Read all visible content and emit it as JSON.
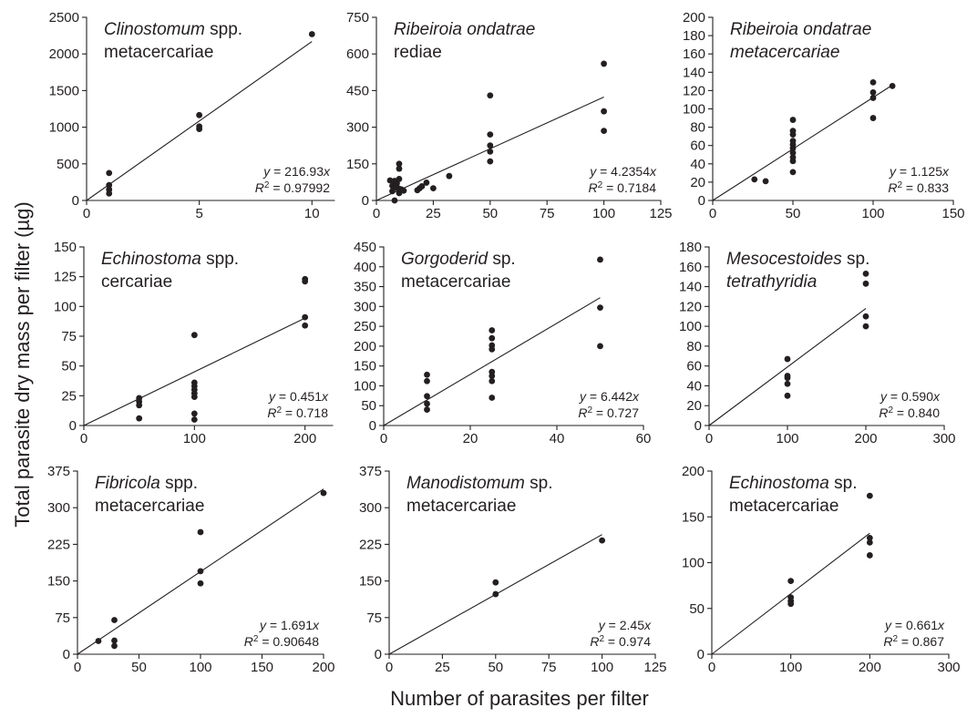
{
  "figure": {
    "xlabel": "Number of parasites per filter",
    "ylabel": "Total parasite dry mass per filter (µg)"
  },
  "chart_data": [
    {
      "type": "scatter",
      "title": [
        {
          "text": "Clinostomum",
          "italic": true
        },
        {
          "text": " spp.",
          "italic": false
        }
      ],
      "subtitle": [
        {
          "text": "metacercariae",
          "italic": false
        }
      ],
      "equation": "y = 216.93x",
      "r2": "0.97992",
      "xlim": [
        0,
        11
      ],
      "ylim": [
        0,
        2500
      ],
      "xticks": [
        0,
        5,
        10
      ],
      "yticks": [
        0,
        500,
        1000,
        1500,
        2000,
        2500
      ],
      "slope": 216.93,
      "fit_x": [
        0,
        10
      ],
      "points": [
        [
          1,
          375
        ],
        [
          1,
          210
        ],
        [
          1,
          150
        ],
        [
          1,
          95
        ],
        [
          5,
          1165
        ],
        [
          5,
          1010
        ],
        [
          5,
          975
        ],
        [
          10,
          2270
        ]
      ]
    },
    {
      "type": "scatter",
      "title": [
        {
          "text": "Ribeiroia ondatrae",
          "italic": true
        }
      ],
      "subtitle": [
        {
          "text": "rediae",
          "italic": false
        }
      ],
      "equation": "y = 4.2354x",
      "r2": "0.7184",
      "xlim": [
        0,
        125
      ],
      "ylim": [
        0,
        750
      ],
      "xticks": [
        0,
        25,
        50,
        75,
        100,
        125
      ],
      "yticks": [
        0,
        150,
        300,
        450,
        600,
        750
      ],
      "slope": 4.2354,
      "fit_x": [
        0,
        100
      ],
      "points": [
        [
          6,
          82
        ],
        [
          7,
          60
        ],
        [
          7,
          38
        ],
        [
          8,
          0
        ],
        [
          8,
          80
        ],
        [
          9,
          70
        ],
        [
          9,
          52
        ],
        [
          10,
          150
        ],
        [
          10,
          130
        ],
        [
          10,
          88
        ],
        [
          10,
          48
        ],
        [
          10,
          30
        ],
        [
          11,
          45
        ],
        [
          12,
          40
        ],
        [
          18,
          42
        ],
        [
          19,
          50
        ],
        [
          20,
          58
        ],
        [
          22,
          73
        ],
        [
          25,
          50
        ],
        [
          32,
          100
        ],
        [
          50,
          430
        ],
        [
          50,
          270
        ],
        [
          50,
          225
        ],
        [
          50,
          200
        ],
        [
          50,
          160
        ],
        [
          100,
          560
        ],
        [
          100,
          365
        ],
        [
          100,
          285
        ]
      ]
    },
    {
      "type": "scatter",
      "title": [
        {
          "text": "Ribeiroia ondatrae",
          "italic": true
        }
      ],
      "subtitle": [
        {
          "text": "metacercariae",
          "italic": true
        }
      ],
      "equation": "y = 1.125x",
      "r2": "0.833",
      "xlim": [
        0,
        150
      ],
      "ylim": [
        0,
        200
      ],
      "xticks": [
        0,
        50,
        100,
        150
      ],
      "yticks": [
        0,
        20,
        40,
        60,
        80,
        100,
        120,
        140,
        160,
        180,
        200
      ],
      "slope": 1.125,
      "fit_x": [
        0,
        112
      ],
      "points": [
        [
          26,
          23
        ],
        [
          33,
          21
        ],
        [
          50,
          88
        ],
        [
          50,
          76
        ],
        [
          50,
          72
        ],
        [
          50,
          65
        ],
        [
          50,
          61
        ],
        [
          50,
          57
        ],
        [
          50,
          52
        ],
        [
          50,
          47
        ],
        [
          50,
          43
        ],
        [
          50,
          31
        ],
        [
          100,
          129
        ],
        [
          100,
          118
        ],
        [
          100,
          112
        ],
        [
          100,
          90
        ],
        [
          112,
          125
        ]
      ]
    },
    {
      "type": "scatter",
      "title": [
        {
          "text": "Echinostoma",
          "italic": true
        },
        {
          "text": " spp.",
          "italic": false
        }
      ],
      "subtitle": [
        {
          "text": "cercariae",
          "italic": false
        }
      ],
      "equation": "y = 0.451x",
      "r2": "0.718",
      "xlim": [
        0,
        225
      ],
      "ylim": [
        0,
        150
      ],
      "xticks": [
        0,
        100,
        200
      ],
      "yticks": [
        0,
        25,
        50,
        75,
        100,
        125,
        150
      ],
      "slope": 0.451,
      "fit_x": [
        0,
        200
      ],
      "points": [
        [
          50,
          23
        ],
        [
          50,
          20
        ],
        [
          50,
          17
        ],
        [
          50,
          6
        ],
        [
          100,
          76
        ],
        [
          100,
          36
        ],
        [
          100,
          33
        ],
        [
          100,
          30
        ],
        [
          100,
          27
        ],
        [
          100,
          24
        ],
        [
          100,
          10
        ],
        [
          100,
          5
        ],
        [
          200,
          123
        ],
        [
          200,
          121
        ],
        [
          200,
          91
        ],
        [
          200,
          84
        ]
      ]
    },
    {
      "type": "scatter",
      "title": [
        {
          "text": "Gorgoderid",
          "italic": true
        },
        {
          "text": " sp.",
          "italic": false
        }
      ],
      "subtitle": [
        {
          "text": "metacercariae",
          "italic": false
        }
      ],
      "equation": "y = 6.442x",
      "r2": "0.727",
      "xlim": [
        0,
        60
      ],
      "ylim": [
        0,
        450
      ],
      "xticks": [
        0,
        20,
        40,
        60
      ],
      "yticks": [
        0,
        50,
        100,
        150,
        200,
        250,
        300,
        350,
        400,
        450
      ],
      "slope": 6.442,
      "fit_x": [
        0,
        50
      ],
      "points": [
        [
          10,
          128
        ],
        [
          10,
          112
        ],
        [
          10,
          74
        ],
        [
          10,
          55
        ],
        [
          10,
          40
        ],
        [
          25,
          240
        ],
        [
          25,
          220
        ],
        [
          25,
          202
        ],
        [
          25,
          192
        ],
        [
          25,
          135
        ],
        [
          25,
          125
        ],
        [
          25,
          112
        ],
        [
          25,
          70
        ],
        [
          50,
          418
        ],
        [
          50,
          297
        ],
        [
          50,
          200
        ]
      ]
    },
    {
      "type": "scatter",
      "title": [
        {
          "text": "Mesocestoides",
          "italic": true
        },
        {
          "text": " sp.",
          "italic": false
        }
      ],
      "subtitle": [
        {
          "text": "tetrathyridia",
          "italic": true
        }
      ],
      "equation": "y = 0.590x",
      "r2": "0.840",
      "xlim": [
        0,
        300
      ],
      "ylim": [
        0,
        180
      ],
      "xticks": [
        0,
        100,
        200,
        300
      ],
      "yticks": [
        0,
        20,
        40,
        60,
        80,
        100,
        120,
        140,
        160,
        180
      ],
      "slope": 0.59,
      "fit_x": [
        0,
        200
      ],
      "points": [
        [
          100,
          67
        ],
        [
          100,
          50
        ],
        [
          100,
          48
        ],
        [
          100,
          42
        ],
        [
          100,
          30
        ],
        [
          200,
          153
        ],
        [
          200,
          143
        ],
        [
          200,
          110
        ],
        [
          200,
          100
        ]
      ]
    },
    {
      "type": "scatter",
      "title": [
        {
          "text": "Fibricola",
          "italic": true
        },
        {
          "text": " spp.",
          "italic": false
        }
      ],
      "subtitle": [
        {
          "text": "metacercariae",
          "italic": false
        }
      ],
      "equation": "y = 1.691x",
      "r2": "0.90648",
      "xlim": [
        0,
        200
      ],
      "ylim": [
        0,
        375
      ],
      "xticks": [
        0,
        50,
        100,
        150,
        200
      ],
      "yticks": [
        0,
        75,
        150,
        225,
        300,
        375
      ],
      "slope": 1.691,
      "fit_x": [
        0,
        200
      ],
      "points": [
        [
          17,
          27
        ],
        [
          30,
          70
        ],
        [
          30,
          28
        ],
        [
          30,
          17
        ],
        [
          100,
          250
        ],
        [
          100,
          170
        ],
        [
          100,
          145
        ],
        [
          200,
          330
        ]
      ]
    },
    {
      "type": "scatter",
      "title": [
        {
          "text": "Manodistomum",
          "italic": true
        },
        {
          "text": " sp.",
          "italic": false
        }
      ],
      "subtitle": [
        {
          "text": "metacercariae",
          "italic": false
        }
      ],
      "equation": "y = 2.45x",
      "r2": "0.974",
      "xlim": [
        0,
        125
      ],
      "ylim": [
        0,
        375
      ],
      "xticks": [
        0,
        25,
        50,
        75,
        100,
        125
      ],
      "yticks": [
        0,
        75,
        150,
        225,
        300,
        375
      ],
      "slope": 2.45,
      "fit_x": [
        0,
        100
      ],
      "points": [
        [
          50,
          147
        ],
        [
          50,
          123
        ],
        [
          100,
          233
        ]
      ]
    },
    {
      "type": "scatter",
      "title": [
        {
          "text": "Echinostoma",
          "italic": true
        },
        {
          "text": " sp.",
          "italic": false
        }
      ],
      "subtitle": [
        {
          "text": "metacercariae",
          "italic": false
        }
      ],
      "equation": "y = 0.661x",
      "r2": "0.867",
      "xlim": [
        0,
        300
      ],
      "ylim": [
        0,
        200
      ],
      "xticks": [
        0,
        100,
        200,
        300
      ],
      "yticks": [
        0,
        50,
        100,
        150,
        200
      ],
      "slope": 0.661,
      "fit_x": [
        0,
        200
      ],
      "points": [
        [
          100,
          80
        ],
        [
          100,
          62
        ],
        [
          100,
          58
        ],
        [
          100,
          55
        ],
        [
          200,
          173
        ],
        [
          200,
          127
        ],
        [
          200,
          122
        ],
        [
          200,
          108
        ]
      ]
    }
  ]
}
